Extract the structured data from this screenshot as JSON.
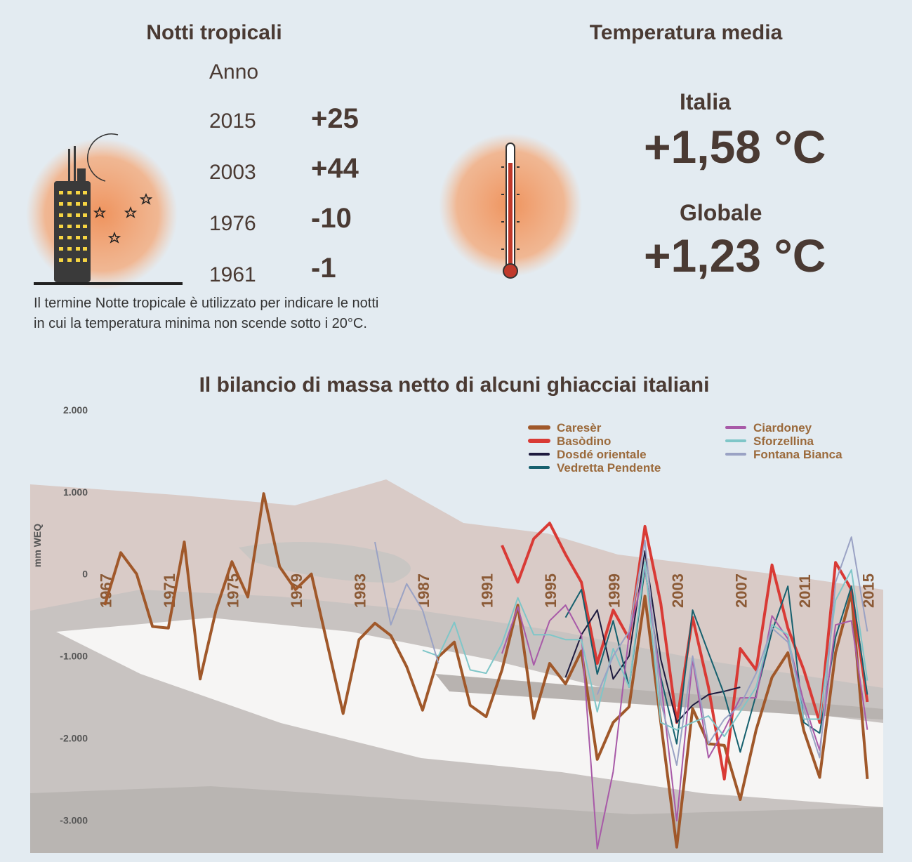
{
  "tropical_nights": {
    "title": "Notti tropicali",
    "header": "Anno",
    "rows": [
      [
        "2015",
        "+25"
      ],
      [
        "2003",
        "+44"
      ],
      [
        "1976",
        "-10"
      ],
      [
        "1961",
        "-1"
      ]
    ],
    "note": "Il termine Notte tropicale è utilizzato per indicare le notti in cui la temperatura minima non scende sotto i 20°C."
  },
  "mean_temperature": {
    "title": "Temperatura media",
    "items": [
      {
        "label": "Italia",
        "value": "+1,58 °C"
      },
      {
        "label": "Globale",
        "value": "+1,23 °C"
      }
    ]
  },
  "chart_data": {
    "type": "line",
    "title": "Il bilancio di massa netto di alcuni ghiacciai italiani",
    "y_label": "mm WEQ",
    "x": [
      1967,
      1968,
      1969,
      1970,
      1971,
      1972,
      1973,
      1974,
      1975,
      1976,
      1977,
      1978,
      1979,
      1980,
      1981,
      1982,
      1983,
      1984,
      1985,
      1986,
      1987,
      1988,
      1989,
      1990,
      1991,
      1992,
      1993,
      1994,
      1995,
      1996,
      1997,
      1998,
      1999,
      2000,
      2001,
      2002,
      2003,
      2004,
      2005,
      2006,
      2007,
      2008,
      2009,
      2010,
      2011,
      2012,
      2013,
      2014,
      2015
    ],
    "xlim": [
      1962.3,
      2016
    ],
    "xticks": [
      1967,
      1971,
      1975,
      1979,
      1983,
      1987,
      1991,
      1995,
      1999,
      2003,
      2007,
      2011,
      2015
    ],
    "ylim": [
      -3400,
      2000
    ],
    "yticks": [
      {
        "value": 2000,
        "label": "2.000"
      },
      {
        "value": 1000,
        "label": "1.000"
      },
      0,
      {
        "value": -1000,
        "label": "-1.000"
      },
      {
        "value": -2000,
        "label": "-2.000"
      },
      {
        "value": -3000,
        "label": "-3.000"
      }
    ],
    "series": [
      {
        "name": "Caresèr",
        "color": "#a0582a",
        "width": 4,
        "values": [
          -380,
          260,
          0,
          -640,
          -660,
          390,
          -1280,
          -440,
          150,
          -280,
          980,
          90,
          -190,
          0,
          -850,
          -1700,
          -800,
          -600,
          -750,
          -1130,
          -1660,
          -1010,
          -830,
          -1600,
          -1740,
          -1170,
          -380,
          -1760,
          -1090,
          -1340,
          -940,
          -2260,
          -1810,
          -1620,
          -270,
          -1810,
          -3330,
          -1640,
          -2070,
          -2090,
          -2750,
          -1900,
          -1260,
          -960,
          -1910,
          -2480,
          -960,
          -230,
          -2500
        ]
      },
      {
        "name": "Basòdino",
        "color": "#d93a35",
        "width": 4,
        "values": [
          null,
          null,
          null,
          null,
          null,
          null,
          null,
          null,
          null,
          null,
          null,
          null,
          null,
          null,
          null,
          null,
          null,
          null,
          null,
          null,
          null,
          null,
          null,
          null,
          null,
          350,
          -100,
          430,
          620,
          240,
          -100,
          -1090,
          -440,
          -790,
          580,
          -360,
          -1810,
          -530,
          -1380,
          -2500,
          -910,
          -1170,
          110,
          -660,
          -1170,
          -1810,
          140,
          -190,
          -1560
        ]
      },
      {
        "name": "Dosdé orientale",
        "color": "#1e1b3f",
        "width": 2,
        "values": [
          null,
          null,
          null,
          null,
          null,
          null,
          null,
          null,
          null,
          null,
          null,
          null,
          null,
          null,
          null,
          null,
          null,
          null,
          null,
          null,
          null,
          null,
          null,
          null,
          null,
          null,
          null,
          null,
          null,
          -1260,
          -740,
          -440,
          -1280,
          -1000,
          280,
          -1040,
          -1810,
          -1600,
          -1470,
          -1430,
          -1380,
          null,
          null,
          null,
          null,
          null,
          null,
          null,
          null
        ]
      },
      {
        "name": "Vedretta Pendente",
        "color": "#16606e",
        "width": 2,
        "values": [
          null,
          null,
          null,
          null,
          null,
          null,
          null,
          null,
          null,
          null,
          null,
          null,
          null,
          null,
          null,
          null,
          null,
          null,
          null,
          null,
          null,
          null,
          null,
          null,
          null,
          null,
          null,
          null,
          null,
          -530,
          -190,
          -1220,
          -570,
          -1380,
          70,
          -1260,
          -2070,
          -440,
          -960,
          -1470,
          -2170,
          -1470,
          -700,
          -150,
          -1810,
          -1940,
          -770,
          -150,
          -1470
        ]
      },
      {
        "name": "Ciardoney",
        "color": "#a85aa8",
        "width": 2,
        "values": [
          null,
          null,
          null,
          null,
          null,
          null,
          null,
          null,
          null,
          null,
          null,
          null,
          null,
          null,
          null,
          null,
          null,
          null,
          null,
          null,
          null,
          null,
          null,
          null,
          null,
          -970,
          -400,
          -1110,
          -570,
          -380,
          -740,
          -3350,
          -2410,
          -740,
          70,
          -1300,
          -3010,
          -1040,
          -2240,
          -1900,
          -1510,
          -1510,
          -510,
          -790,
          -1560,
          -2150,
          -620,
          -570,
          -1900
        ]
      },
      {
        "name": "Sforzellina",
        "color": "#7fc6c8",
        "width": 2,
        "values": [
          null,
          null,
          null,
          null,
          null,
          null,
          null,
          null,
          null,
          null,
          null,
          null,
          null,
          null,
          null,
          null,
          null,
          null,
          null,
          null,
          -930,
          -1000,
          -590,
          -1170,
          -1210,
          -850,
          -290,
          -740,
          -740,
          -800,
          -800,
          -1680,
          -910,
          -1380,
          150,
          -1810,
          -1900,
          -1810,
          -1730,
          -1980,
          -1680,
          -1380,
          -620,
          -740,
          -1770,
          -1770,
          -320,
          50,
          -1300
        ]
      },
      {
        "name": "Fontana Bianca",
        "color": "#9aa2c4",
        "width": 2,
        "values": [
          null,
          null,
          null,
          null,
          null,
          null,
          null,
          null,
          null,
          null,
          null,
          null,
          null,
          null,
          null,
          null,
          null,
          390,
          -620,
          -120,
          -440,
          -1090,
          null,
          null,
          null,
          null,
          null,
          null,
          null,
          null,
          null,
          -1470,
          -1000,
          -700,
          410,
          -1560,
          -2330,
          -1000,
          -2070,
          -1770,
          -1600,
          -1210,
          -660,
          -830,
          -1640,
          -2240,
          -100,
          450,
          -700
        ]
      }
    ]
  }
}
